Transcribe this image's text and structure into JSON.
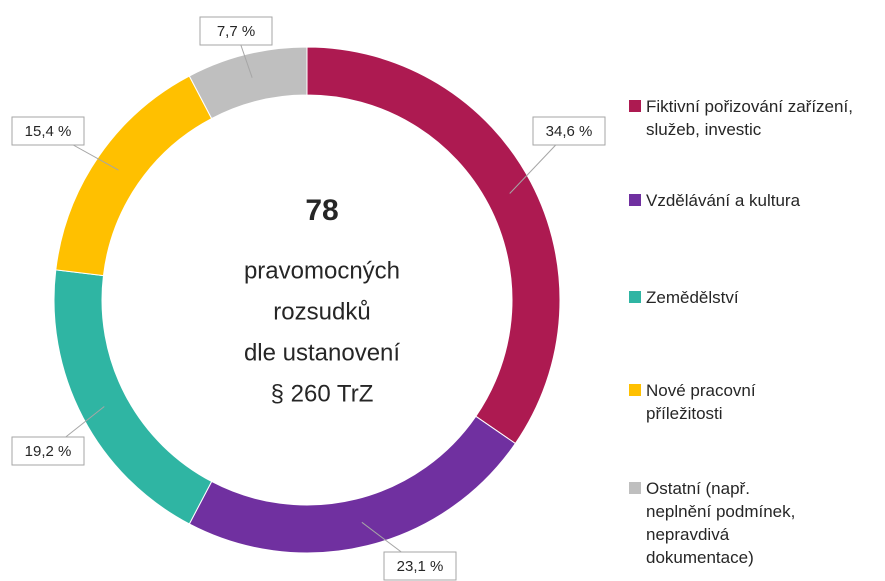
{
  "chart_data": {
    "type": "donut",
    "categories": [
      "Fiktivní pořizování zařízení, služeb, investic",
      "Vzdělávání a kultura",
      "Zemědělství",
      "Nové pracovní příležitosti",
      "Ostatní (např. neplnění podmínek, nepravdivá dokumentace)"
    ],
    "values": [
      34.6,
      23.1,
      19.2,
      15.4,
      7.7
    ],
    "value_labels": [
      "34,6 %",
      "23,1 %",
      "19,2 %",
      "15,4 %",
      "7,7 %"
    ],
    "colors": [
      "#ad1a51",
      "#7030a0",
      "#2fb5a3",
      "#ffc000",
      "#bfbfbf"
    ],
    "center_value": "78",
    "center_text": [
      "pravomocných",
      "rozsudků",
      "dle ustanovení",
      "§ 260 TrZ"
    ],
    "legend": "right"
  }
}
